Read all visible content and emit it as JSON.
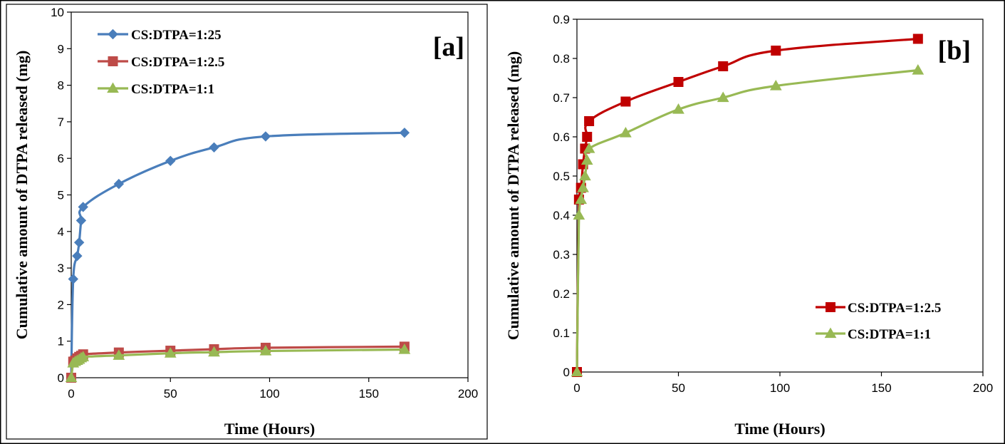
{
  "chart_data": [
    {
      "type": "line",
      "panel_label": "[a]",
      "xlabel": "Time (Hours)",
      "ylabel": "Cumulative amount of DTPA released (mg)",
      "xlim": [
        0,
        200
      ],
      "ylim": [
        0,
        10
      ],
      "xticks": [
        "0",
        "50",
        "100",
        "150",
        "200"
      ],
      "yticks": [
        "0",
        "1",
        "2",
        "3",
        "4",
        "5",
        "6",
        "7",
        "8",
        "9",
        "10"
      ],
      "legend_position": "top-left",
      "series": [
        {
          "name": "CS:DTPA=1:25",
          "color": "#4a7ebb",
          "marker": "diamond",
          "x": [
            0,
            1,
            3,
            4,
            5,
            6,
            24,
            50,
            72,
            98,
            168
          ],
          "y": [
            0,
            2.7,
            3.33,
            3.7,
            4.3,
            4.67,
            5.3,
            5.93,
            6.3,
            6.6,
            6.7
          ]
        },
        {
          "name": "CS:DTPA=1:2.5",
          "color": "#be4b48",
          "marker": "square",
          "x": [
            0,
            1,
            2,
            3,
            4,
            5,
            6,
            24,
            50,
            72,
            98,
            168
          ],
          "y": [
            0,
            0.44,
            0.47,
            0.53,
            0.57,
            0.6,
            0.64,
            0.69,
            0.74,
            0.78,
            0.82,
            0.85
          ]
        },
        {
          "name": "CS:DTPA=1:1",
          "color": "#98b954",
          "marker": "triangle",
          "x": [
            0,
            1,
            2,
            3,
            4,
            5,
            6,
            24,
            50,
            72,
            98,
            168
          ],
          "y": [
            0,
            0.4,
            0.44,
            0.47,
            0.5,
            0.54,
            0.57,
            0.61,
            0.67,
            0.7,
            0.73,
            0.77
          ]
        }
      ]
    },
    {
      "type": "line",
      "panel_label": "[b]",
      "xlabel": "Time (Hours)",
      "ylabel": "Cumulative amount of DTPA released (mg)",
      "xlim": [
        0,
        200
      ],
      "ylim": [
        0,
        0.9
      ],
      "xticks": [
        "0",
        "50",
        "100",
        "150",
        "200"
      ],
      "yticks": [
        "0",
        "0.1",
        "0.2",
        "0.3",
        "0.4",
        "0.5",
        "0.6",
        "0.7",
        "0.8",
        "0.9"
      ],
      "legend_position": "bottom-right",
      "series": [
        {
          "name": "CS:DTPA=1:2.5",
          "color": "#c00000",
          "marker": "square",
          "x": [
            0,
            1,
            2,
            3,
            4,
            5,
            6,
            24,
            50,
            72,
            98,
            168
          ],
          "y": [
            0,
            0.44,
            0.47,
            0.53,
            0.57,
            0.6,
            0.64,
            0.69,
            0.74,
            0.78,
            0.82,
            0.85
          ]
        },
        {
          "name": "CS:DTPA=1:1",
          "color": "#98b954",
          "marker": "triangle",
          "x": [
            0,
            1,
            2,
            3,
            4,
            5,
            6,
            24,
            50,
            72,
            98,
            168
          ],
          "y": [
            0,
            0.4,
            0.44,
            0.47,
            0.5,
            0.54,
            0.57,
            0.61,
            0.67,
            0.7,
            0.73,
            0.77
          ]
        }
      ]
    }
  ]
}
